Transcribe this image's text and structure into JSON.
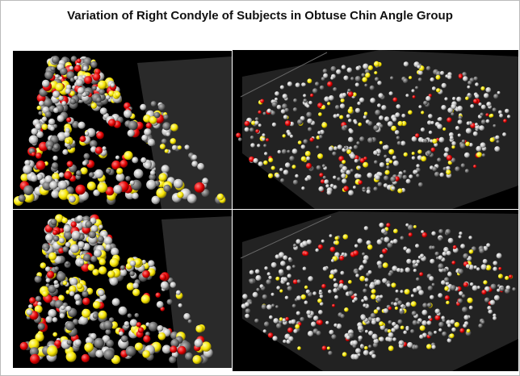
{
  "title": "Variation of Right Condyle of Subjects in Obtuse Chin Angle Group"
}
